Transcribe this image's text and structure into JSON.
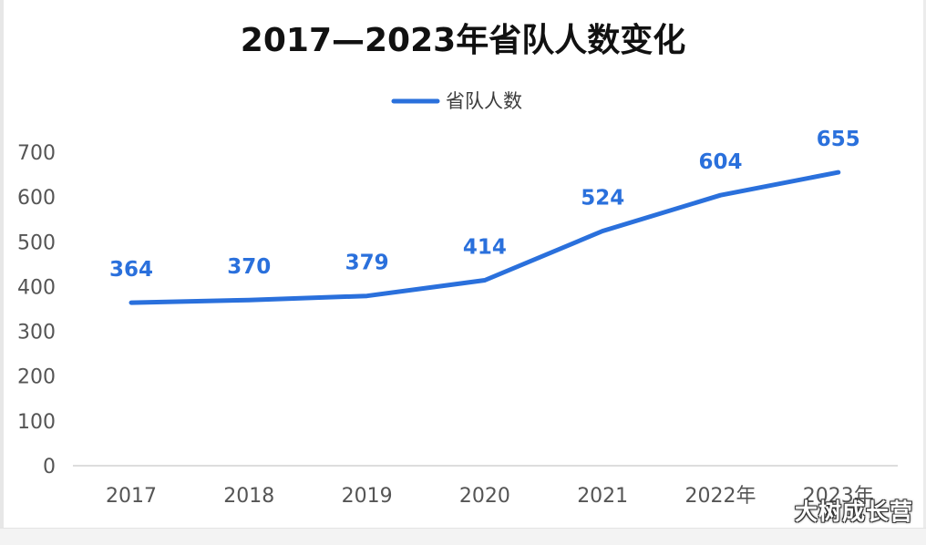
{
  "chart_data": {
    "type": "line",
    "title": "2017—2023年省队人数变化",
    "categories": [
      "2017",
      "2018",
      "2019",
      "2020",
      "2021",
      "2022年",
      "2023年"
    ],
    "series": [
      {
        "name": "省队人数",
        "values": [
          364,
          370,
          379,
          414,
          524,
          604,
          655
        ],
        "color": "#2a70dc"
      }
    ],
    "ylim": [
      0,
      700
    ],
    "yticks": [
      0,
      100,
      200,
      300,
      400,
      500,
      600,
      700
    ],
    "legend_position": "top-center",
    "grid": false,
    "drop_lines": true
  },
  "watermark": "大树成长营"
}
